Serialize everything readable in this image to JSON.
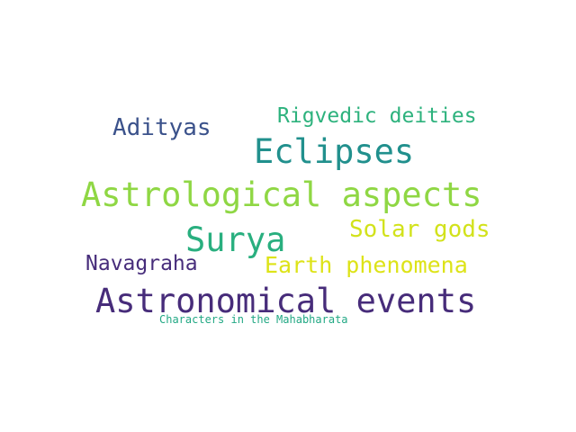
{
  "words": [
    {
      "text": "Rigvedic deities",
      "color": "#2db27d"
    },
    {
      "text": "Adityas",
      "color": "#3b528b"
    },
    {
      "text": "Eclipses",
      "color": "#21908d"
    },
    {
      "text": "Astrological aspects",
      "color": "#8fd744"
    },
    {
      "text": "Surya",
      "color": "#29af7f"
    },
    {
      "text": "Solar gods",
      "color": "#d2e21b"
    },
    {
      "text": "Navagraha",
      "color": "#472d7b"
    },
    {
      "text": "Earth phenomena",
      "color": "#dde318"
    },
    {
      "text": "Astronomical events",
      "color": "#472c7a"
    },
    {
      "text": "Characters in the Mahabharata",
      "color": "#22a884"
    }
  ]
}
